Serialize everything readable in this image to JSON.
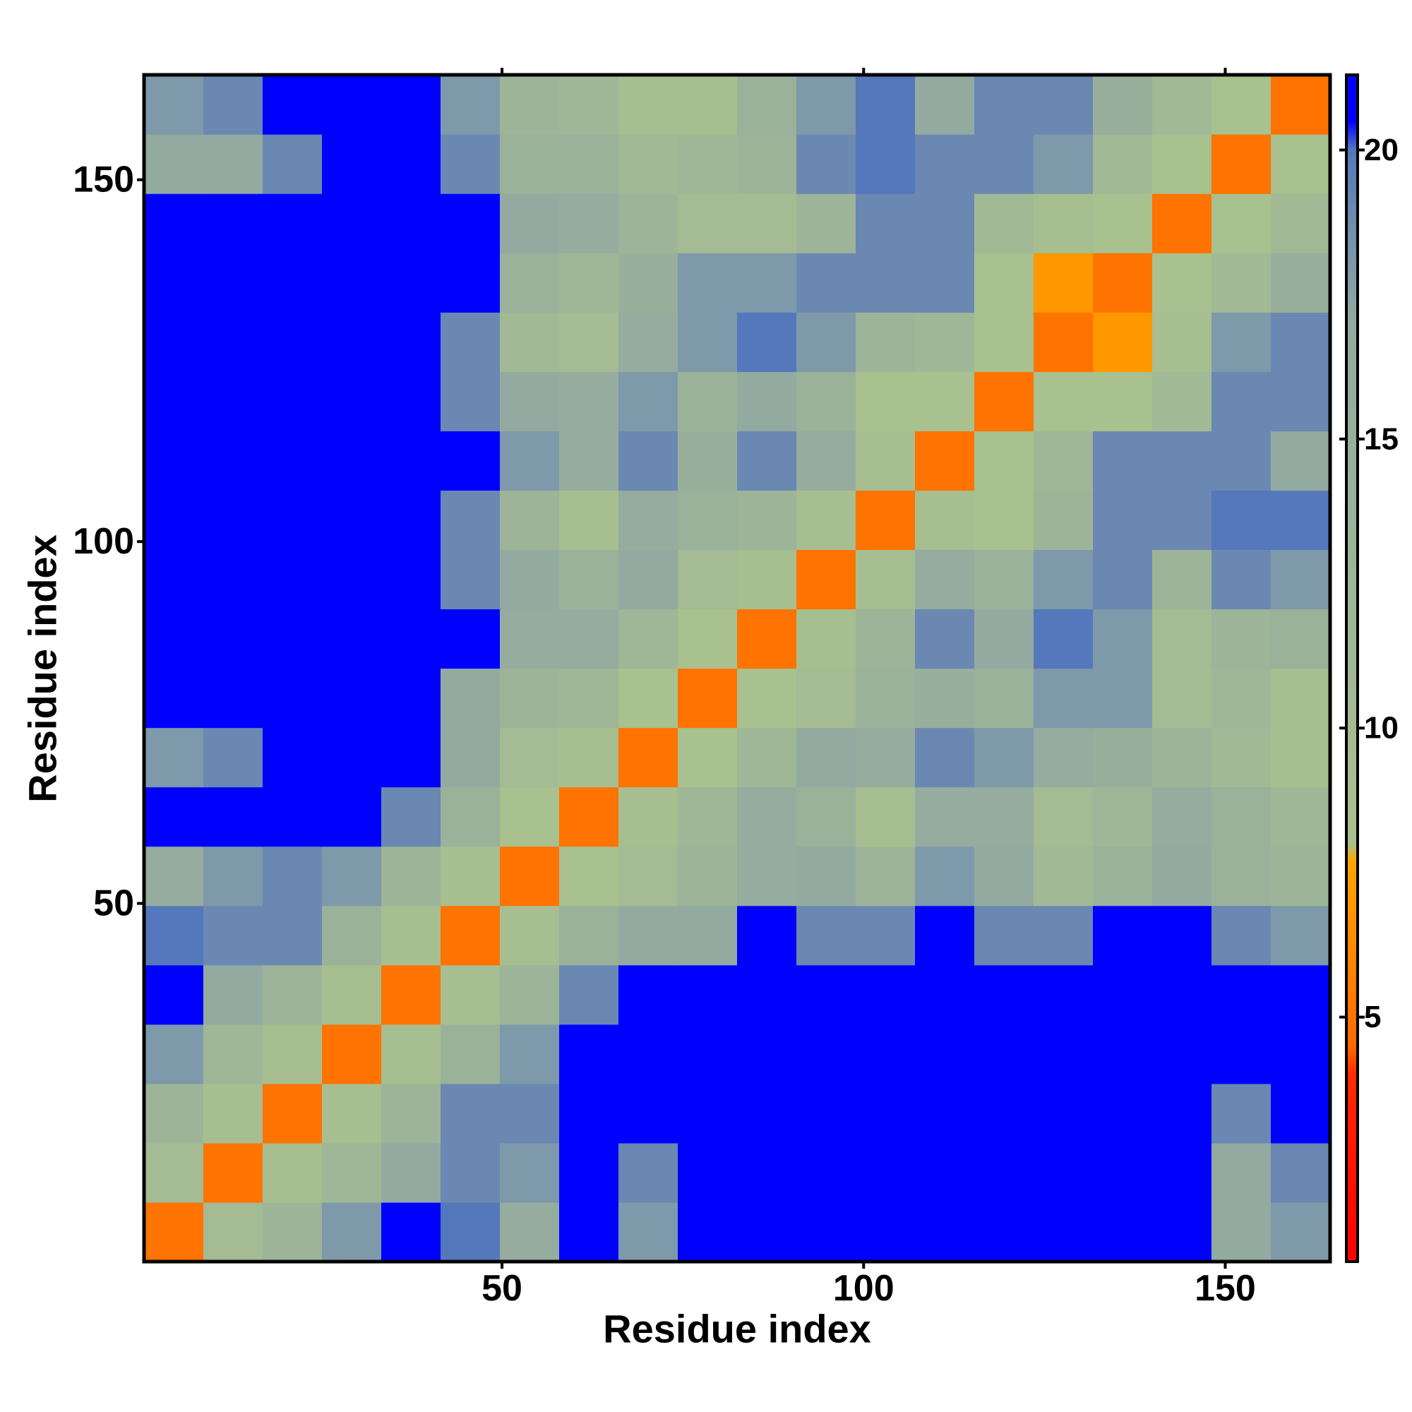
{
  "chart_data": {
    "type": "heatmap",
    "x_label": "Residue index",
    "y_label": "Residue index",
    "x": [
      4.6,
      12.8,
      21.0,
      29.2,
      37.4,
      45.6,
      53.8,
      62.0,
      70.2,
      78.4,
      86.6,
      94.8,
      103.0,
      111.2,
      119.4,
      127.6,
      135.8,
      144.0,
      152.2,
      160.4
    ],
    "y": [
      4.6,
      12.8,
      21.0,
      29.2,
      37.4,
      45.6,
      53.8,
      62.0,
      70.2,
      78.4,
      86.6,
      94.8,
      103.0,
      111.2,
      119.4,
      127.6,
      135.8,
      144.0,
      152.2,
      160.4
    ],
    "z": [
      [
        5,
        10,
        13,
        18,
        21,
        20,
        16,
        21,
        18,
        21,
        21,
        21,
        21,
        21,
        21,
        21,
        21,
        21,
        17,
        18
      ],
      [
        10,
        5,
        9,
        12,
        17,
        19,
        18,
        21,
        19,
        21,
        21,
        21,
        21,
        21,
        21,
        21,
        21,
        21,
        17,
        19
      ],
      [
        13,
        9,
        5,
        9,
        13,
        19,
        19,
        21,
        21,
        21,
        21,
        21,
        21,
        21,
        21,
        21,
        21,
        21,
        19,
        21
      ],
      [
        18,
        12,
        9,
        5,
        9,
        14,
        18,
        21,
        21,
        21,
        21,
        21,
        21,
        21,
        21,
        21,
        21,
        21,
        21,
        21
      ],
      [
        21,
        17,
        13,
        9,
        5,
        9,
        13,
        19,
        21,
        21,
        21,
        21,
        21,
        21,
        21,
        21,
        21,
        21,
        21,
        21
      ],
      [
        20,
        19,
        19,
        14,
        9,
        5,
        9,
        14,
        17,
        17,
        21,
        19,
        19,
        21,
        19,
        19,
        21,
        21,
        19,
        18
      ],
      [
        16,
        18,
        19,
        18,
        13,
        9,
        5,
        8,
        10,
        13,
        16,
        17,
        13,
        18,
        17,
        11,
        14,
        17,
        14,
        13
      ],
      [
        21,
        21,
        21,
        21,
        19,
        14,
        8,
        5,
        9,
        12,
        16,
        14,
        9,
        16,
        16,
        10,
        12,
        16,
        14,
        12
      ],
      [
        18,
        19,
        21,
        21,
        21,
        17,
        10,
        9,
        5,
        8,
        12,
        17,
        16,
        19,
        18,
        16,
        15,
        13,
        11,
        9
      ],
      [
        21,
        21,
        21,
        21,
        21,
        17,
        13,
        12,
        8,
        5,
        8,
        10,
        14,
        15,
        14,
        18,
        18,
        10,
        12,
        9
      ],
      [
        21,
        21,
        21,
        21,
        21,
        21,
        16,
        16,
        12,
        8,
        5,
        9,
        13,
        19,
        17,
        20,
        18,
        10,
        13,
        14
      ],
      [
        21,
        21,
        21,
        21,
        21,
        19,
        17,
        14,
        17,
        10,
        9,
        5,
        9,
        16,
        14,
        18,
        19,
        13,
        19,
        18
      ],
      [
        21,
        21,
        21,
        21,
        21,
        19,
        13,
        9,
        16,
        14,
        13,
        9,
        5,
        9,
        8,
        13,
        19,
        19,
        20,
        20
      ],
      [
        21,
        21,
        21,
        21,
        21,
        21,
        18,
        16,
        19,
        15,
        19,
        16,
        9,
        5,
        8,
        12,
        19,
        19,
        19,
        17
      ],
      [
        21,
        21,
        21,
        21,
        21,
        19,
        17,
        16,
        18,
        14,
        17,
        14,
        8,
        8,
        5,
        8,
        8,
        11,
        19,
        19
      ],
      [
        21,
        21,
        21,
        21,
        21,
        19,
        11,
        10,
        16,
        18,
        20,
        18,
        13,
        12,
        8,
        5,
        7,
        9,
        18,
        19
      ],
      [
        21,
        21,
        21,
        21,
        21,
        21,
        14,
        12,
        15,
        18,
        18,
        19,
        19,
        19,
        8,
        7,
        5,
        8,
        11,
        15
      ],
      [
        21,
        21,
        21,
        21,
        21,
        21,
        17,
        16,
        13,
        10,
        10,
        13,
        19,
        19,
        11,
        9,
        8,
        5,
        8,
        11
      ],
      [
        17,
        17,
        19,
        21,
        21,
        19,
        14,
        14,
        11,
        12,
        13,
        19,
        20,
        19,
        19,
        18,
        11,
        8,
        5,
        8
      ],
      [
        18,
        19,
        21,
        21,
        21,
        18,
        13,
        12,
        9,
        9,
        14,
        18,
        20,
        17,
        19,
        19,
        15,
        11,
        8,
        5
      ]
    ],
    "xlim": [
      0.5,
      164.5
    ],
    "ylim": [
      0.5,
      164.5
    ],
    "xticks": [
      50,
      100,
      150
    ],
    "yticks": [
      50,
      100,
      150
    ],
    "zlim": [
      0.77,
      21.3
    ],
    "zticks": [
      5,
      10,
      15,
      20
    ],
    "colorscale": [
      [
        0.77,
        "#ff0000"
      ],
      [
        4,
        "#ff2a00"
      ],
      [
        4.5,
        "#ff6a00"
      ],
      [
        7.7,
        "#ffa500"
      ],
      [
        8,
        "#a9c08f"
      ],
      [
        17,
        "#93aaa0"
      ],
      [
        20,
        "#5577bb"
      ],
      [
        20.5,
        "#0000ff"
      ],
      [
        21.3,
        "#0000ff"
      ]
    ]
  }
}
